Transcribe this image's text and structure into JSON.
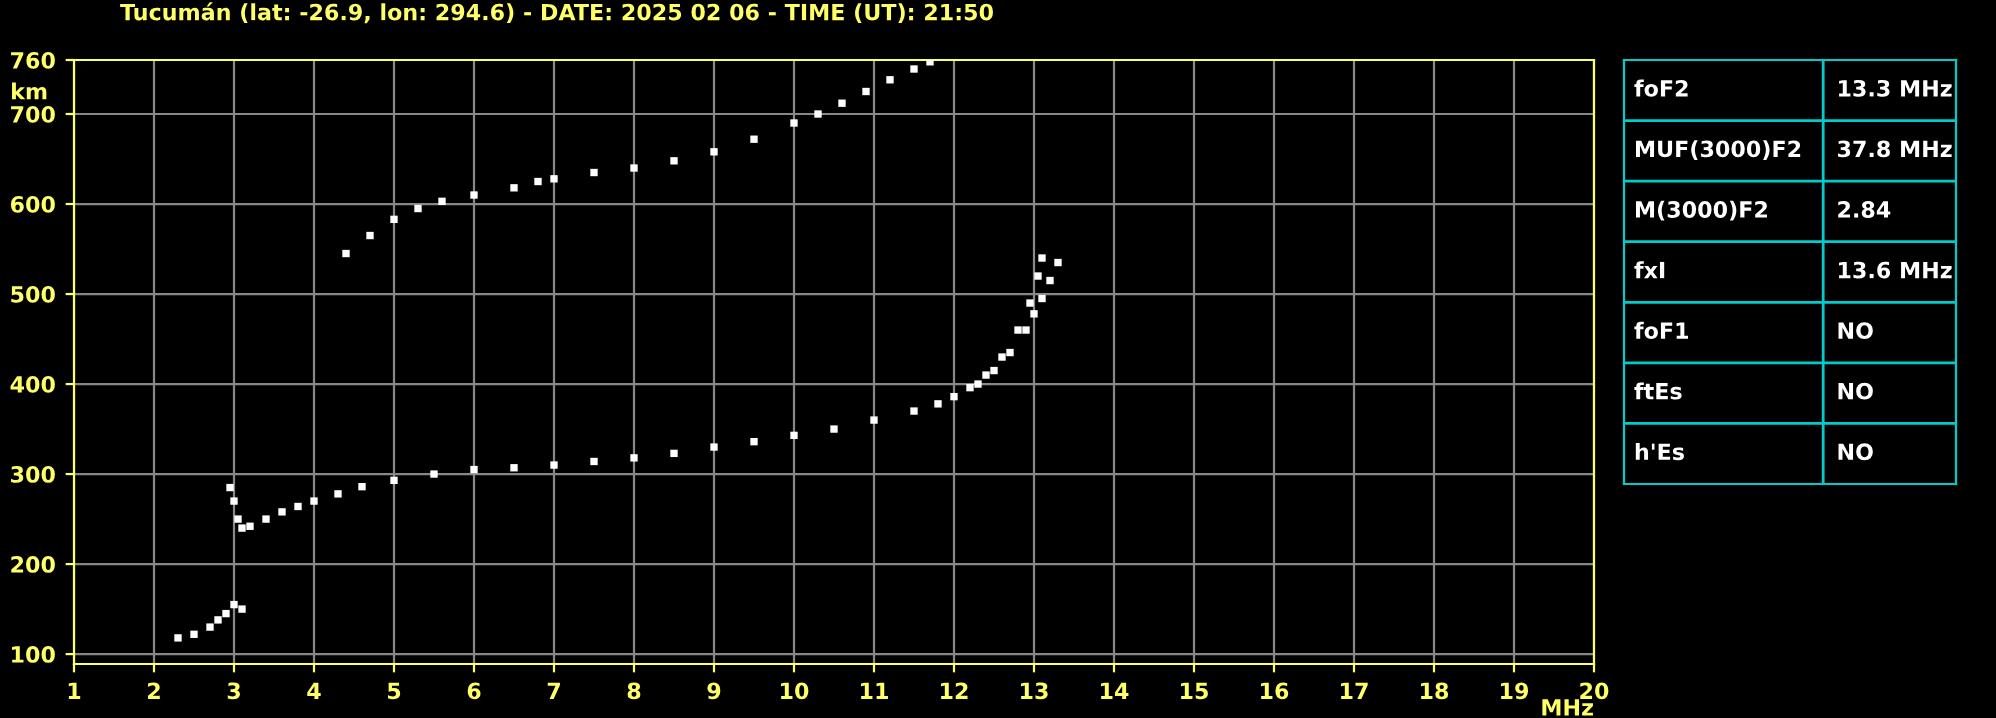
{
  "chart_data": [
    {
      "type": "scatter",
      "title": "Tucumán (lat: -26.9, lon: 294.6) - DATE: 2025 02 06 - TIME (UT): 21:50",
      "xlabel": "MHz",
      "ylabel": "km",
      "xlim": [
        1,
        20
      ],
      "ylim": [
        89,
        760
      ],
      "xticks": [
        1,
        2,
        3,
        4,
        5,
        6,
        7,
        8,
        9,
        10,
        11,
        12,
        13,
        14,
        15,
        16,
        17,
        18,
        19,
        20
      ],
      "yticks": [
        100,
        200,
        300,
        400,
        500,
        600,
        700,
        760
      ],
      "grid": true,
      "marker": "square",
      "series": [
        {
          "color": "#ffffff",
          "x": [
            2.95,
            3.0,
            3.05,
            3.1,
            3.2,
            3.4,
            3.6,
            3.8,
            4.0,
            4.3,
            4.6,
            5.0,
            5.5,
            6.0,
            6.5,
            7.0,
            7.5,
            8.0,
            8.5,
            9.0,
            9.5,
            10.0,
            10.5,
            11.0,
            11.5,
            11.8,
            12.0,
            12.2,
            12.4,
            12.6,
            12.8,
            12.95,
            13.05,
            13.1
          ],
          "values": [
            285,
            270,
            250,
            240,
            242,
            250,
            258,
            264,
            270,
            278,
            286,
            293,
            300,
            305,
            307,
            310,
            314,
            318,
            323,
            330,
            336,
            343,
            350,
            360,
            370,
            378,
            386,
            396,
            410,
            430,
            460,
            490,
            520,
            540
          ]
        },
        {
          "color": "#ffffff",
          "x": [
            12.3,
            12.5,
            12.7,
            12.9,
            13.0,
            13.1,
            13.2,
            13.3
          ],
          "values": [
            400,
            415,
            435,
            460,
            478,
            495,
            515,
            535
          ]
        },
        {
          "color": "#ffffff",
          "x": [
            4.4,
            4.7,
            5.0,
            5.3,
            5.6,
            6.0,
            6.5,
            6.8,
            7.0,
            7.5,
            8.0,
            8.5,
            9.0,
            9.5,
            10.0,
            10.3,
            10.6,
            10.9,
            11.2,
            11.5,
            11.7
          ],
          "values": [
            545,
            565,
            583,
            595,
            603,
            610,
            618,
            625,
            628,
            635,
            640,
            648,
            658,
            672,
            690,
            700,
            712,
            725,
            738,
            750,
            758
          ]
        },
        {
          "color": "#ffffff",
          "x": [
            2.3,
            2.5,
            2.7,
            2.8,
            2.9,
            3.0,
            3.1
          ],
          "values": [
            118,
            122,
            130,
            138,
            145,
            155,
            150
          ]
        }
      ]
    },
    {
      "type": "other",
      "annotations": [
        "foF2",
        "13.3 MHz",
        "MUF(3000)F2",
        "37.8 MHz",
        "M(3000)F2",
        "2.84",
        "fxI",
        "13.6 MHz",
        "foF1",
        "NO",
        "ftEs",
        "NO",
        "h'Es",
        "NO"
      ]
    }
  ]
}
